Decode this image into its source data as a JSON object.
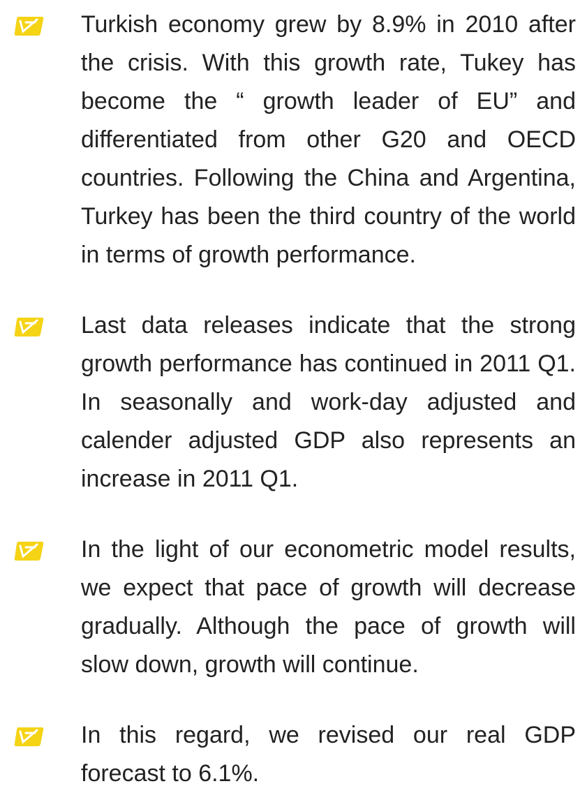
{
  "bullets": [
    "Turkish economy grew by 8.9% in 2010 after the crisis. With this growth rate, Tukey has become the “ growth leader of EU” and differentiated from other G20 and OECD countries.  Following the China and Argentina,  Turkey has been the third country of the world in terms of growth performance.",
    "Last data releases indicate that the strong growth performance has continued in 2011 Q1. In seasonally and work-day adjusted and calender adjusted GDP also represents an increase in 2011 Q1.",
    "In the light of our econometric model results, we expect that pace of growth will decrease gradually. Although the pace of growth will slow down, growth will continue.",
    "In this regard, we revised our real GDP forecast to 6.1%."
  ]
}
